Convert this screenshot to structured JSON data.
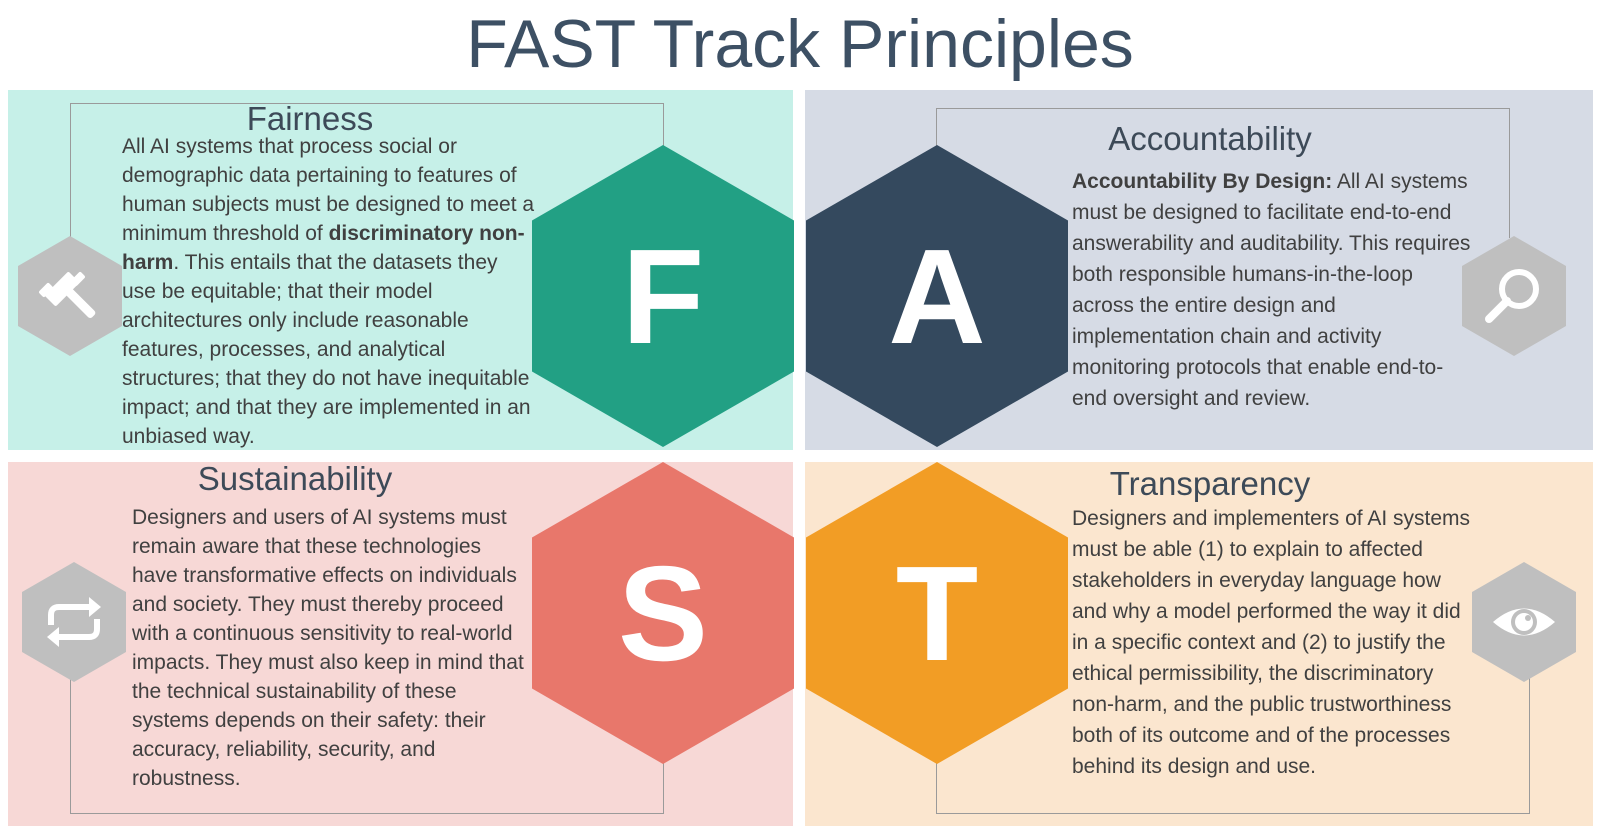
{
  "title": "FAST Track Principles",
  "colors": {
    "fairness_bg": "#c6f0e8",
    "fairness_hex": "#22a084",
    "accountability_bg": "#d6dbe5",
    "accountability_hex": "#34495e",
    "sustainability_bg": "#f7d8d6",
    "sustainability_hex": "#e8776b",
    "transparency_bg": "#fbe6cf",
    "transparency_hex": "#f29d25",
    "icon_hex": "#bfbfbf"
  },
  "fairness": {
    "letter": "F",
    "heading": "Fairness",
    "icon": "gavel-icon",
    "text_1": "All AI systems that process social or demographic data pertaining to features of human subjects must be designed to meet a minimum threshold of ",
    "bold": "discriminatory non-harm",
    "text_2": ". This entails that the datasets they use be equitable; that their model architectures only include reasonable features, processes, and analytical structures; that they do not have inequitable impact; and that they are implemented in an unbiased way."
  },
  "accountability": {
    "letter": "A",
    "heading": "Accountability",
    "icon": "magnifier-icon",
    "bold": "Accountability By Design:",
    "text": " All AI systems must be designed to facilitate end-to-end answerability and auditability. This requires both responsible humans-in-the-loop across the entire design and implementation chain and activity monitoring protocols that enable end-to-end oversight and review."
  },
  "sustainability": {
    "letter": "S",
    "heading": "Sustainability",
    "icon": "repeat-icon",
    "text": "Designers and users of AI systems must remain aware that these technologies have transformative effects on individuals and society. They must thereby proceed with a continuous sensitivity to real-world impacts. They must also keep in mind that the technical sustainability of these systems depends on their safety: their accuracy, reliability, security, and robustness."
  },
  "transparency": {
    "letter": "T",
    "heading": "Transparency",
    "icon": "eye-icon",
    "text": "Designers and implementers of AI systems must be able (1) to explain to affected stakeholders in everyday language how and why a model performed the way it did in a specific context and (2) to justify the ethical permissibility, the discriminatory non-harm, and the public trustworthiness both of its outcome and of the processes behind its design and use."
  }
}
